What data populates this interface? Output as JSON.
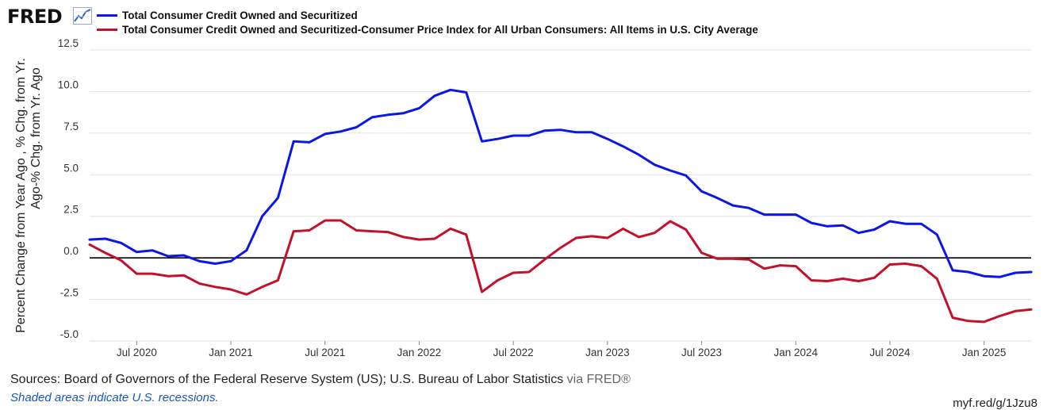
{
  "header": {
    "logo_text": "FRED",
    "logo_icon": "line-chart-icon"
  },
  "legend": [
    {
      "label": "Total Consumer Credit Owned and Securitized",
      "color": "#0a17e6"
    },
    {
      "label": "Total Consumer Credit Owned and Securitized-Consumer Price Index for All Urban Consumers: All Items in U.S. City Average",
      "color": "#c5102a"
    }
  ],
  "footer": {
    "sources": "Sources: Board of Governors of the Federal Reserve System (US); U.S. Bureau of Labor Statistics",
    "via": " via FRED®",
    "shaded": "Shaded areas indicate U.S. recessions.",
    "url": "myf.red/g/1Jzu8"
  },
  "chart_data": {
    "type": "line",
    "ylabel": "Percent Change from Year Ago , % Chg. from Yr. Ago-% Chg. from Yr. Ago",
    "ylim": [
      -5.0,
      12.5
    ],
    "yticks": [
      -5.0,
      -2.5,
      0.0,
      2.5,
      5.0,
      7.5,
      10.0,
      12.5
    ],
    "ytick_labels": [
      "-5.0",
      "-2.5",
      "0.0",
      "2.5",
      "5.0",
      "7.5",
      "10.0",
      "12.5"
    ],
    "xlim": [
      "2020-04",
      "2025-04"
    ],
    "xticks": [
      "2020-07",
      "2021-01",
      "2021-07",
      "2022-01",
      "2022-07",
      "2023-01",
      "2023-07",
      "2024-01",
      "2024-07",
      "2025-01"
    ],
    "xtick_labels": [
      "Jul 2020",
      "Jan 2021",
      "Jul 2021",
      "Jan 2022",
      "Jul 2022",
      "Jan 2023",
      "Jul 2023",
      "Jan 2024",
      "Jul 2024",
      "Jan 2025"
    ],
    "grid": true,
    "zero_line": true,
    "x": [
      "2020-04",
      "2020-05",
      "2020-06",
      "2020-07",
      "2020-08",
      "2020-09",
      "2020-10",
      "2020-11",
      "2020-12",
      "2021-01",
      "2021-02",
      "2021-03",
      "2021-04",
      "2021-05",
      "2021-06",
      "2021-07",
      "2021-08",
      "2021-09",
      "2021-10",
      "2021-11",
      "2021-12",
      "2022-01",
      "2022-02",
      "2022-03",
      "2022-04",
      "2022-05",
      "2022-06",
      "2022-07",
      "2022-08",
      "2022-09",
      "2022-10",
      "2022-11",
      "2022-12",
      "2023-01",
      "2023-02",
      "2023-03",
      "2023-04",
      "2023-05",
      "2023-06",
      "2023-07",
      "2023-08",
      "2023-09",
      "2023-10",
      "2023-11",
      "2023-12",
      "2024-01",
      "2024-02",
      "2024-03",
      "2024-04",
      "2024-05",
      "2024-06",
      "2024-07",
      "2024-08",
      "2024-09",
      "2024-10",
      "2024-11",
      "2024-12",
      "2025-01",
      "2025-02",
      "2025-03",
      "2025-04"
    ],
    "series": [
      {
        "name": "Total Consumer Credit Owned and Securitized",
        "color": "#0a17e6",
        "values": [
          1.1,
          1.15,
          0.9,
          0.35,
          0.45,
          0.1,
          0.15,
          -0.2,
          -0.35,
          -0.2,
          0.45,
          2.5,
          3.6,
          7.0,
          6.95,
          7.45,
          7.6,
          7.85,
          8.45,
          8.6,
          8.7,
          9.0,
          9.75,
          10.1,
          9.95,
          7.0,
          7.15,
          7.35,
          7.35,
          7.65,
          7.7,
          7.55,
          7.55,
          7.15,
          6.7,
          6.2,
          5.6,
          5.25,
          4.95,
          4.0,
          3.6,
          3.15,
          3.0,
          2.6,
          2.6,
          2.6,
          2.1,
          1.9,
          1.95,
          1.5,
          1.7,
          2.2,
          2.05,
          2.05,
          1.4,
          -0.75,
          -0.85,
          -1.1,
          -1.15,
          -0.9,
          -0.85
        ]
      },
      {
        "name": "Total Consumer Credit Owned and Securitized-Consumer Price Index for All Urban Consumers: All Items in U.S. City Average",
        "color": "#c5102a",
        "values": [
          0.8,
          0.3,
          -0.15,
          -0.95,
          -0.95,
          -1.1,
          -1.05,
          -1.55,
          -1.75,
          -1.9,
          -2.2,
          -1.75,
          -1.35,
          1.6,
          1.65,
          2.25,
          2.25,
          1.65,
          1.6,
          1.55,
          1.25,
          1.1,
          1.15,
          1.75,
          1.4,
          -2.05,
          -1.35,
          -0.9,
          -0.85,
          -0.1,
          0.6,
          1.2,
          1.3,
          1.2,
          1.75,
          1.25,
          1.5,
          2.2,
          1.7,
          0.3,
          -0.05,
          -0.05,
          -0.1,
          -0.65,
          -0.45,
          -0.5,
          -1.35,
          -1.4,
          -1.25,
          -1.4,
          -1.2,
          -0.4,
          -0.35,
          -0.5,
          -1.25,
          -3.6,
          -3.8,
          -3.85,
          -3.5,
          -3.2,
          -3.1
        ]
      }
    ]
  }
}
